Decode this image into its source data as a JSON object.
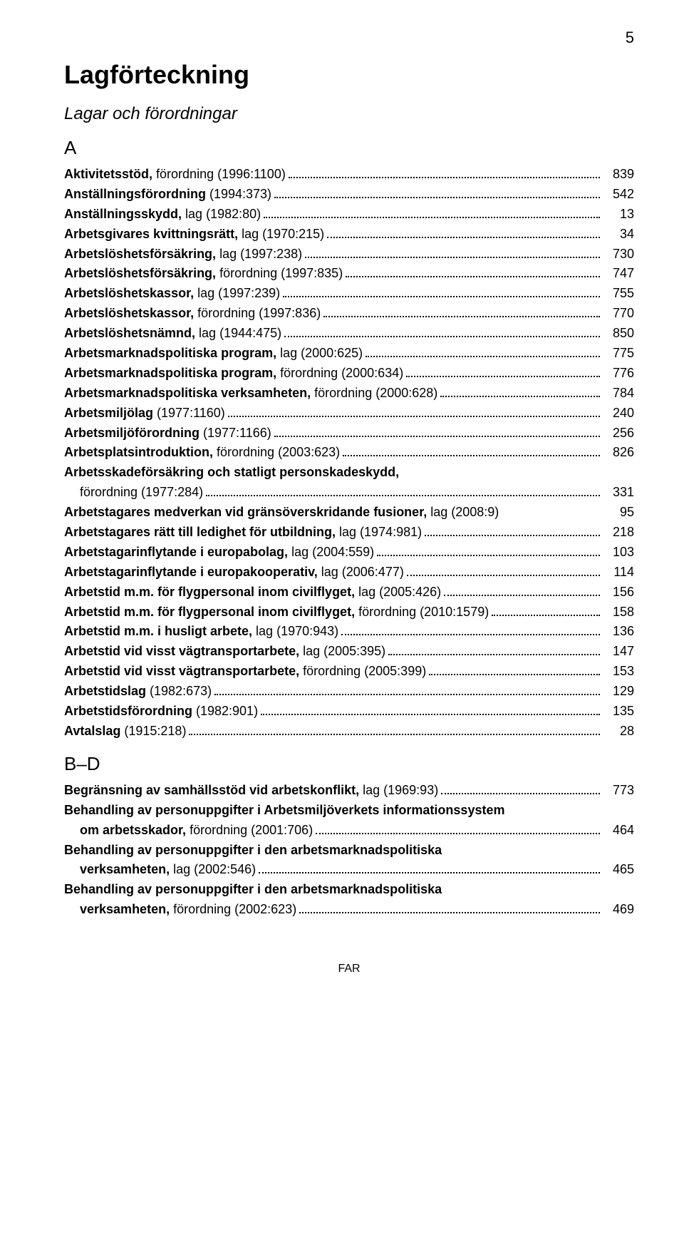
{
  "pageNumber": "5",
  "title": "Lagförteckning",
  "subtitle": "Lagar och förordningar",
  "footer": "FAR",
  "sections": [
    {
      "letter": "A",
      "entries": [
        {
          "bold": "Aktivitetsstöd,",
          "rest": " förordning (1996:1100)",
          "page": "839"
        },
        {
          "bold": "Anställningsförordning",
          "rest": " (1994:373)",
          "page": "542"
        },
        {
          "bold": "Anställningsskydd,",
          "rest": " lag (1982:80)",
          "page": "13"
        },
        {
          "bold": "Arbetsgivares kvittningsrätt,",
          "rest": " lag (1970:215)",
          "page": "34"
        },
        {
          "bold": "Arbetslöshetsförsäkring,",
          "rest": " lag (1997:238)",
          "page": "730"
        },
        {
          "bold": "Arbetslöshetsförsäkring,",
          "rest": " förordning (1997:835)",
          "page": "747"
        },
        {
          "bold": "Arbetslöshetskassor,",
          "rest": " lag (1997:239)",
          "page": "755"
        },
        {
          "bold": "Arbetslöshetskassor,",
          "rest": " förordning (1997:836)",
          "page": "770"
        },
        {
          "bold": "Arbetslöshetsnämnd,",
          "rest": " lag (1944:475)",
          "page": "850"
        },
        {
          "bold": "Arbetsmarknadspolitiska program,",
          "rest": " lag (2000:625)",
          "page": "775"
        },
        {
          "bold": "Arbetsmarknadspolitiska program,",
          "rest": " förordning (2000:634)",
          "page": "776"
        },
        {
          "bold": "Arbetsmarknadspolitiska verksamheten,",
          "rest": " förordning (2000:628)",
          "page": "784"
        },
        {
          "bold": "Arbetsmiljölag",
          "rest": " (1977:1160)",
          "page": "240"
        },
        {
          "bold": "Arbetsmiljöförordning",
          "rest": " (1977:1166)",
          "page": "256"
        },
        {
          "bold": "Arbetsplatsintroduktion,",
          "rest": " förordning (2003:623)",
          "page": "826"
        },
        {
          "wrapTop": true,
          "bold": "Arbetsskadeförsäkring och statligt personskadeskydd,"
        },
        {
          "cont": true,
          "rest": "förordning (1977:284)",
          "page": "331"
        },
        {
          "nodots": true,
          "bold": "Arbetstagares medverkan vid gränsöverskridande fusioner,",
          "rest": " lag (2008:9)",
          "page": "95"
        },
        {
          "bold": "Arbetstagares rätt till ledighet för utbildning,",
          "rest": " lag (1974:981)",
          "page": "218"
        },
        {
          "bold": "Arbetstagarinflytande i europabolag,",
          "rest": " lag (2004:559)",
          "page": "103"
        },
        {
          "bold": "Arbetstagarinflytande i europakooperativ,",
          "rest": " lag (2006:477)",
          "page": "114"
        },
        {
          "bold": "Arbetstid m.m. för flygpersonal inom civilflyget,",
          "rest": " lag (2005:426)",
          "page": "156"
        },
        {
          "bold": "Arbetstid m.m. för flygpersonal inom civilflyget,",
          "rest": " förordning (2010:1579)",
          "page": "158"
        },
        {
          "bold": "Arbetstid m.m. i husligt arbete,",
          "rest": " lag (1970:943)",
          "page": "136"
        },
        {
          "bold": "Arbetstid vid visst vägtransportarbete,",
          "rest": " lag (2005:395)",
          "page": "147"
        },
        {
          "bold": "Arbetstid vid visst vägtransportarbete,",
          "rest": " förordning (2005:399)",
          "page": "153"
        },
        {
          "bold": "Arbetstidslag",
          "rest": " (1982:673)",
          "page": "129"
        },
        {
          "bold": "Arbetstidsförordning",
          "rest": " (1982:901)",
          "page": "135"
        },
        {
          "bold": "Avtalslag",
          "rest": " (1915:218)",
          "page": "28"
        }
      ]
    },
    {
      "letter": "B–D",
      "entries": [
        {
          "bold": "Begränsning av samhällsstöd vid arbetskonflikt,",
          "rest": " lag (1969:93)",
          "page": "773"
        },
        {
          "wrapTop": true,
          "bold": "Behandling av personuppgifter i Arbetsmiljöverkets informationssystem"
        },
        {
          "cont": true,
          "boldCont": "om arbetsskador,",
          "rest": " förordning (2001:706)",
          "page": "464"
        },
        {
          "wrapTop": true,
          "bold": "Behandling av personuppgifter i den arbetsmarknadspolitiska"
        },
        {
          "cont": true,
          "boldCont": "verksamheten,",
          "rest": " lag (2002:546)",
          "page": "465"
        },
        {
          "wrapTop": true,
          "bold": "Behandling av personuppgifter i den arbetsmarknadspolitiska"
        },
        {
          "cont": true,
          "boldCont": "verksamheten,",
          "rest": " förordning (2002:623)",
          "page": "469"
        }
      ]
    }
  ]
}
